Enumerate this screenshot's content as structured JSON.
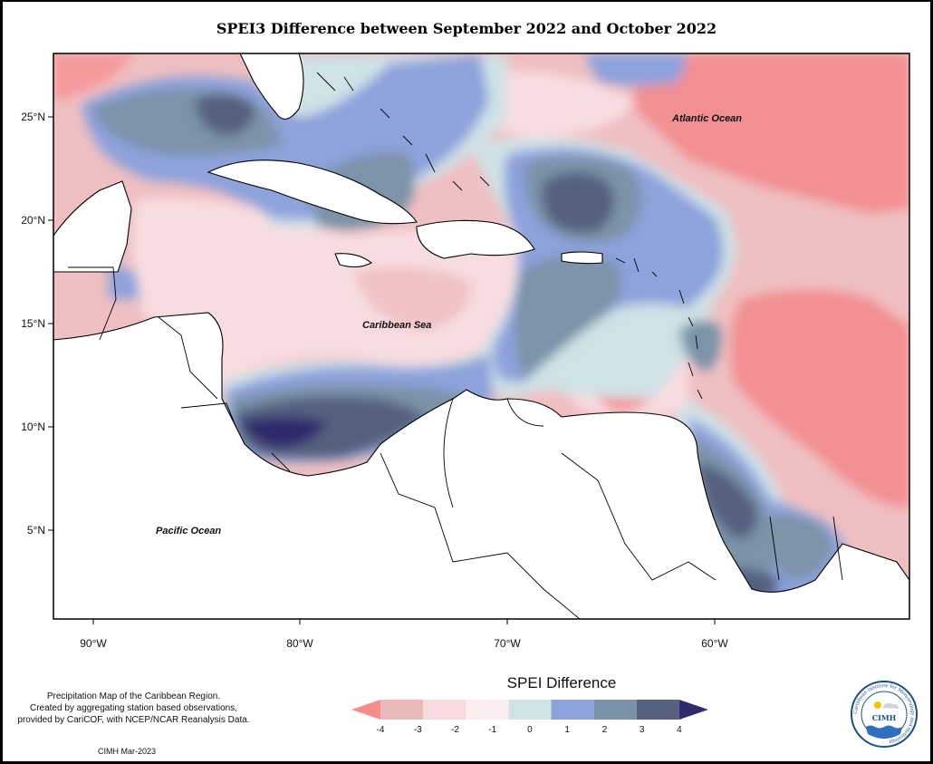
{
  "map": {
    "title": "SPEI3 Difference between September 2022 and October 2022",
    "lat_labels": [
      "25°N",
      "20°N",
      "15°N",
      "10°N",
      "5°N"
    ],
    "lon_labels": [
      "90°W",
      "80°W",
      "70°W",
      "60°W"
    ],
    "region_labels": {
      "atlantic": "Atlantic Ocean",
      "caribbean": "Caribbean Sea",
      "pacific": "Pacific Ocean"
    }
  },
  "legend": {
    "title": "SPEI Difference",
    "ticks": [
      "-4",
      "-3",
      "-2",
      "-1",
      "0",
      "1",
      "2",
      "3",
      "4"
    ],
    "colors": [
      "#f48c8c",
      "#e9b8b8",
      "#f7dadd",
      "#fbeef0",
      "#cfe2e6",
      "#8ea2dc",
      "#7b93a8",
      "#55617f",
      "#2e2a6c"
    ]
  },
  "credit": {
    "line1": "Precipitation Map of the Caribbean Region.",
    "line2": "Created by aggregating station based observations,",
    "line3": "provided by CariCOF, with NCEP/NCAR Reanalysis Data.",
    "date": "CIMH Mar-2023"
  },
  "logo": {
    "name": "CIMH",
    "ring_text": "Caribbean Institute for Meteorology and Hydrology"
  }
}
